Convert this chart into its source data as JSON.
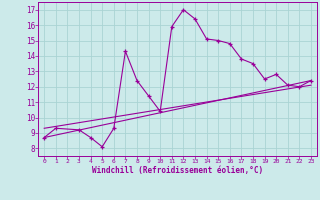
{
  "line1_x": [
    0,
    1,
    3,
    4,
    5,
    6,
    7,
    8,
    9,
    10,
    11,
    12,
    13,
    14,
    15,
    16,
    17,
    18,
    19,
    20,
    21,
    22,
    23
  ],
  "line1_y": [
    8.7,
    9.3,
    9.2,
    8.7,
    8.1,
    9.3,
    14.3,
    12.4,
    11.4,
    10.4,
    15.9,
    17.0,
    16.4,
    15.1,
    15.0,
    14.8,
    13.8,
    13.5,
    12.5,
    12.8,
    12.1,
    12.0,
    12.4
  ],
  "line2_x": [
    0,
    23
  ],
  "line2_y": [
    8.7,
    12.4
  ],
  "line3_x": [
    0,
    23
  ],
  "line3_y": [
    9.3,
    12.1
  ],
  "color": "#990099",
  "bg_color": "#cceaea",
  "grid_color": "#aad4d4",
  "xlabel": "Windchill (Refroidissement éolien,°C)",
  "xlim": [
    -0.5,
    23.5
  ],
  "ylim": [
    7.5,
    17.5
  ],
  "yticks": [
    8,
    9,
    10,
    11,
    12,
    13,
    14,
    15,
    16,
    17
  ],
  "xticks": [
    0,
    1,
    2,
    3,
    4,
    5,
    6,
    7,
    8,
    9,
    10,
    11,
    12,
    13,
    14,
    15,
    16,
    17,
    18,
    19,
    20,
    21,
    22,
    23
  ]
}
